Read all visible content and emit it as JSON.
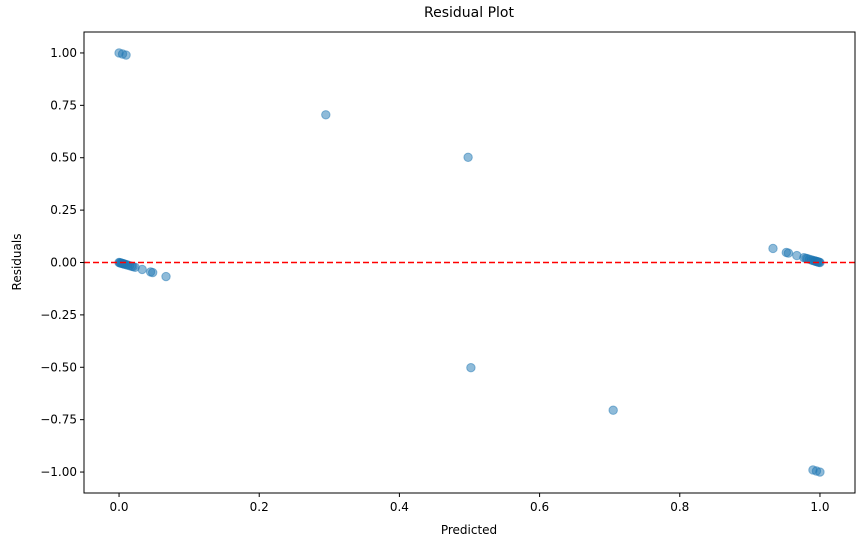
{
  "chart_data": {
    "type": "scatter",
    "title": "Residual Plot",
    "xlabel": "Predicted",
    "ylabel": "Residuals",
    "xlim": [
      -0.05,
      1.05
    ],
    "ylim": [
      -1.1,
      1.1
    ],
    "xticks": [
      0.0,
      0.2,
      0.4,
      0.6,
      0.8,
      1.0
    ],
    "xtick_labels": [
      "0.0",
      "0.2",
      "0.4",
      "0.6",
      "0.8",
      "1.0"
    ],
    "yticks": [
      1.0,
      0.75,
      0.5,
      0.25,
      0.0,
      -0.25,
      -0.5,
      -0.75,
      -1.0
    ],
    "ytick_labels": [
      "1.00",
      "0.75",
      "0.50",
      "0.25",
      "0.00",
      "−0.25",
      "−0.50",
      "−0.75",
      "−1.00"
    ],
    "grid": false,
    "reference_line": {
      "y": 0.0,
      "color": "#ff0000",
      "style": "dashed"
    },
    "marker_color": "#1f77b4",
    "marker_alpha": 0.5,
    "points": [
      {
        "x": 0.0,
        "y": 1.0
      },
      {
        "x": 0.005,
        "y": 0.995
      },
      {
        "x": 0.01,
        "y": 0.99
      },
      {
        "x": 0.295,
        "y": 0.705
      },
      {
        "x": 0.498,
        "y": 0.502
      },
      {
        "x": 0.502,
        "y": -0.502
      },
      {
        "x": 0.705,
        "y": -0.705
      },
      {
        "x": 0.99,
        "y": -0.99
      },
      {
        "x": 0.995,
        "y": -0.995
      },
      {
        "x": 1.0,
        "y": -1.0
      },
      {
        "x": 0.0,
        "y": 0.0
      },
      {
        "x": 0.001,
        "y": -0.001
      },
      {
        "x": 0.002,
        "y": -0.002
      },
      {
        "x": 0.003,
        "y": -0.003
      },
      {
        "x": 0.004,
        "y": -0.004
      },
      {
        "x": 0.005,
        "y": -0.005
      },
      {
        "x": 0.006,
        "y": -0.006
      },
      {
        "x": 0.007,
        "y": -0.007
      },
      {
        "x": 0.008,
        "y": -0.008
      },
      {
        "x": 0.01,
        "y": -0.01
      },
      {
        "x": 0.012,
        "y": -0.012
      },
      {
        "x": 0.015,
        "y": -0.015
      },
      {
        "x": 0.018,
        "y": -0.018
      },
      {
        "x": 0.02,
        "y": -0.02
      },
      {
        "x": 0.023,
        "y": -0.023
      },
      {
        "x": 0.033,
        "y": -0.033
      },
      {
        "x": 0.045,
        "y": -0.045
      },
      {
        "x": 0.048,
        "y": -0.048
      },
      {
        "x": 0.067,
        "y": -0.067
      },
      {
        "x": 0.933,
        "y": 0.067
      },
      {
        "x": 0.952,
        "y": 0.048
      },
      {
        "x": 0.955,
        "y": 0.045
      },
      {
        "x": 0.967,
        "y": 0.033
      },
      {
        "x": 0.977,
        "y": 0.023
      },
      {
        "x": 0.98,
        "y": 0.02
      },
      {
        "x": 0.982,
        "y": 0.018
      },
      {
        "x": 0.985,
        "y": 0.015
      },
      {
        "x": 0.988,
        "y": 0.012
      },
      {
        "x": 0.99,
        "y": 0.01
      },
      {
        "x": 0.992,
        "y": 0.008
      },
      {
        "x": 0.993,
        "y": 0.007
      },
      {
        "x": 0.994,
        "y": 0.006
      },
      {
        "x": 0.995,
        "y": 0.005
      },
      {
        "x": 0.996,
        "y": 0.004
      },
      {
        "x": 0.997,
        "y": 0.003
      },
      {
        "x": 0.998,
        "y": 0.002
      },
      {
        "x": 0.999,
        "y": 0.001
      },
      {
        "x": 1.0,
        "y": 0.0
      }
    ]
  }
}
